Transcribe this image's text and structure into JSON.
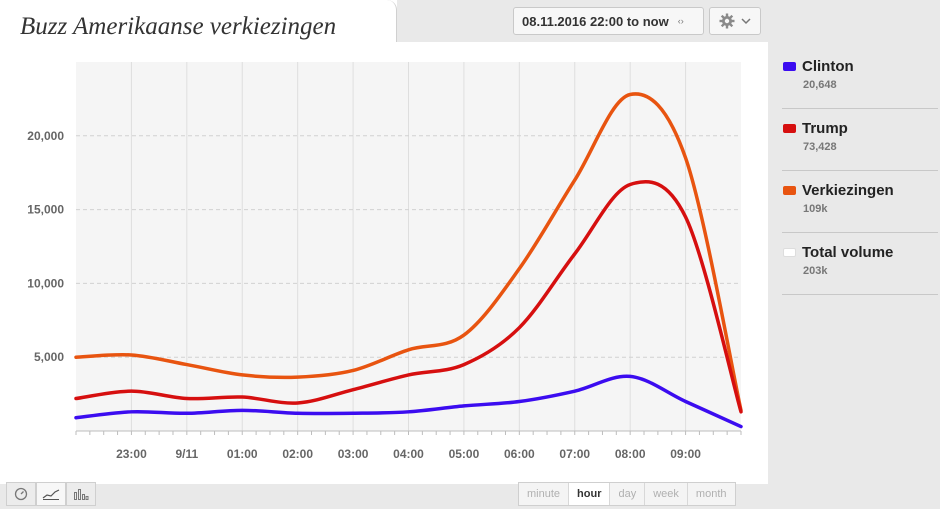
{
  "header": {
    "title": "Buzz Amerikaanse verkiezingen",
    "date_range": "08.11.2016 22:00 to now",
    "date_arrows": "‹›",
    "settings_icon": "gear-icon",
    "dropdown_icon": "chevron-down-icon"
  },
  "legend": [
    {
      "name": "Clinton",
      "count": "20,648",
      "color": "#3b0cf0"
    },
    {
      "name": "Trump",
      "count": "73,428",
      "color": "#d60f0f"
    },
    {
      "name": "Verkiezingen",
      "count": "109k",
      "color": "#e85410"
    },
    {
      "name": "Total volume",
      "count": "203k",
      "color": "#ffffff"
    }
  ],
  "footer": {
    "view_icons": [
      "clock-icon",
      "area-chart-icon",
      "bar-chart-icon"
    ],
    "granularity": [
      "minute",
      "hour",
      "day",
      "week",
      "month"
    ],
    "active_granularity": "hour"
  },
  "chart_data": {
    "type": "line",
    "x": [
      "22:00",
      "23:00",
      "00:00",
      "01:00",
      "02:00",
      "03:00",
      "04:00",
      "05:00",
      "06:00",
      "07:00",
      "08:00",
      "09:00",
      "10:00"
    ],
    "x_tick_labels": [
      "23:00",
      "9/11",
      "01:00",
      "02:00",
      "03:00",
      "04:00",
      "05:00",
      "06:00",
      "07:00",
      "08:00",
      "09:00"
    ],
    "xlim": [
      "22:00",
      "10:00"
    ],
    "y_ticks": [
      5000,
      10000,
      15000,
      20000
    ],
    "y_tick_labels": [
      "5,000",
      "10,000",
      "15,000",
      "20,000"
    ],
    "ylim": [
      0,
      25000
    ],
    "grid": true,
    "series": [
      {
        "name": "Verkiezingen",
        "color": "#e85410",
        "values": [
          5000,
          5150,
          4500,
          3800,
          3650,
          4100,
          5500,
          6500,
          11000,
          17000,
          22800,
          18500,
          1400
        ]
      },
      {
        "name": "Trump",
        "color": "#d60f0f",
        "values": [
          2200,
          2700,
          2200,
          2300,
          1900,
          2800,
          3800,
          4500,
          7000,
          12000,
          16700,
          14500,
          1300
        ]
      },
      {
        "name": "Clinton",
        "color": "#3b0cf0",
        "values": [
          900,
          1300,
          1200,
          1400,
          1200,
          1200,
          1300,
          1700,
          2000,
          2700,
          3700,
          2000,
          300
        ]
      }
    ]
  }
}
